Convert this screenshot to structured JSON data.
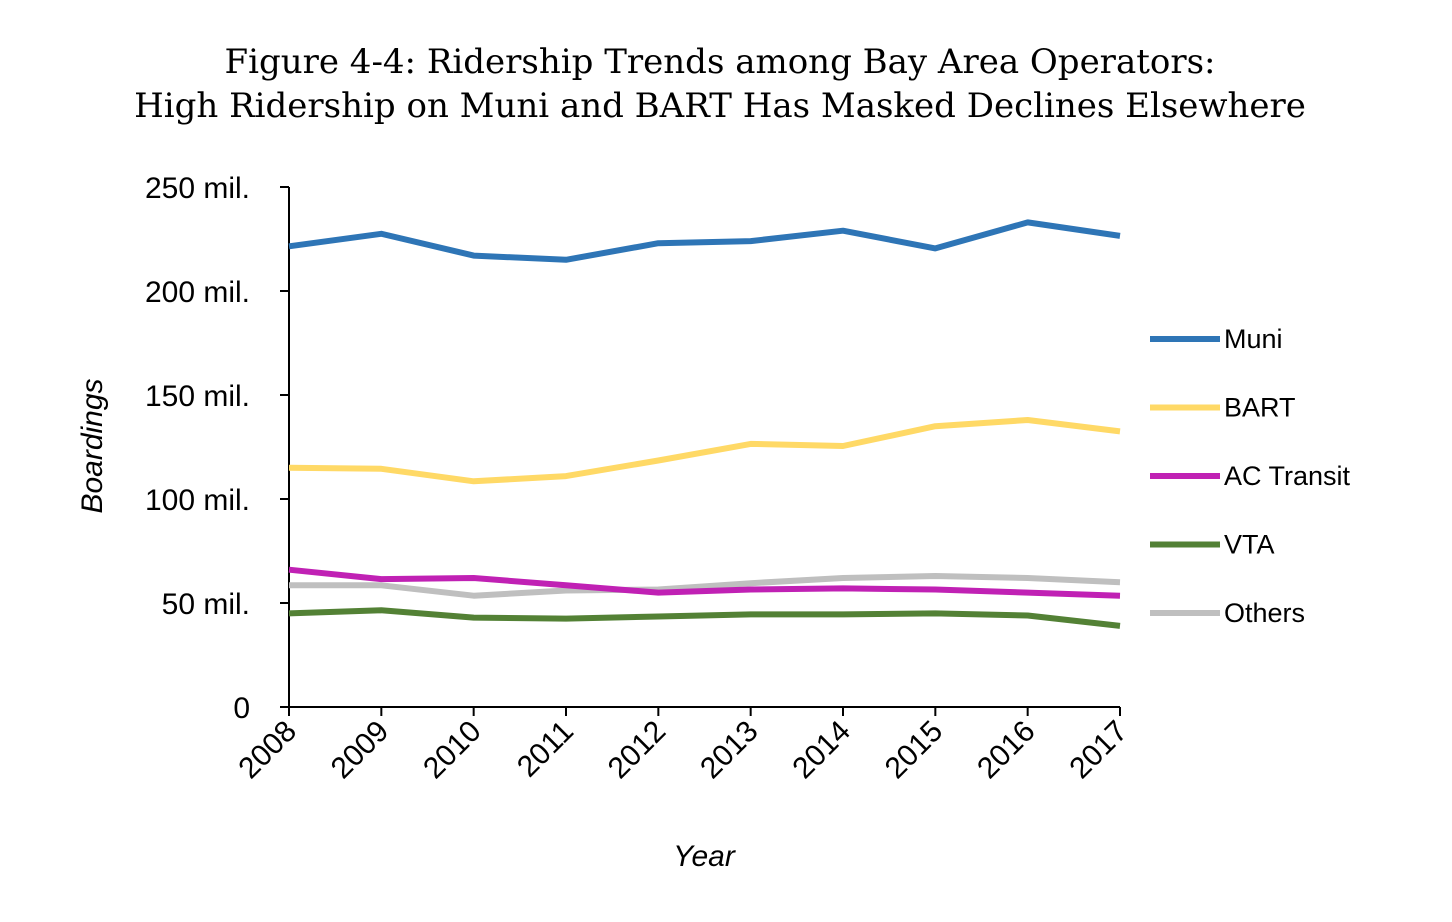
{
  "chart_data": {
    "type": "line",
    "title": "Figure 4-4: Ridership Trends among Bay Area Operators:",
    "subtitle": "High Ridership on Muni and BART Has Masked Declines Elsewhere",
    "xlabel": "Year",
    "ylabel": "Boardings",
    "ylim": [
      0,
      250
    ],
    "yticks": [
      0,
      50,
      100,
      150,
      200,
      250
    ],
    "ytick_labels": [
      "0",
      "50 mil.",
      "100 mil.",
      "150 mil.",
      "200 mil.",
      "250 mil."
    ],
    "categories": [
      "2008",
      "2009",
      "2010",
      "2011",
      "2012",
      "2013",
      "2014",
      "2015",
      "2016",
      "2017"
    ],
    "grid": false,
    "legend_position": "right",
    "series": [
      {
        "name": "Muni",
        "color": "#2E75B6",
        "values": [
          221.5,
          227.5,
          217,
          215,
          223,
          224,
          229,
          220.5,
          233,
          226.5
        ]
      },
      {
        "name": "BART",
        "color": "#FFD966",
        "values": [
          115,
          114.5,
          108.5,
          111,
          118.5,
          126.5,
          125.5,
          135,
          138,
          132.5
        ]
      },
      {
        "name": "AC Transit",
        "color": "#C021B4",
        "values": [
          66,
          61.5,
          62,
          58.5,
          55,
          56.5,
          57,
          56.5,
          55,
          53.5
        ]
      },
      {
        "name": "VTA",
        "color": "#538135",
        "values": [
          45,
          46.5,
          43,
          42.5,
          43.5,
          44.5,
          44.5,
          45,
          44,
          39
        ]
      },
      {
        "name": "Others",
        "color": "#BFBFBF",
        "values": [
          58.5,
          58.5,
          53.5,
          56,
          56.5,
          59.5,
          62,
          63,
          62,
          60
        ]
      }
    ]
  }
}
